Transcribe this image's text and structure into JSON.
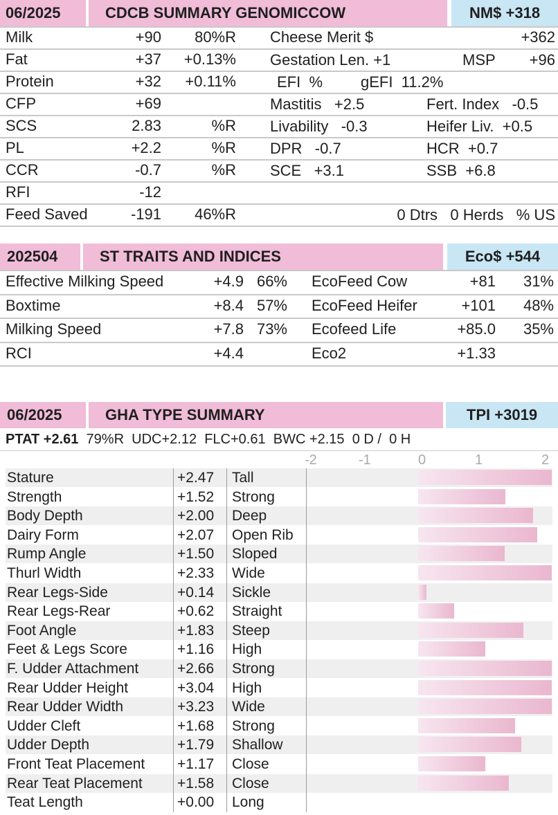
{
  "summary": {
    "date": "06/2025",
    "title": "CDCB SUMMARY GENOMICCOW",
    "index": "NM$ +318",
    "left_rows": [
      {
        "label": "Milk",
        "value": "+90",
        "extra": "80%R"
      },
      {
        "label": "Fat",
        "value": "+37",
        "extra": "+0.13%"
      },
      {
        "label": "Protein",
        "value": "+32",
        "extra": "+0.11%"
      },
      {
        "label": "CFP",
        "value": "+69",
        "extra": ""
      },
      {
        "label": "SCS",
        "value": "2.83",
        "extra": "%R"
      },
      {
        "label": "PL",
        "value": "+2.2",
        "extra": "%R"
      },
      {
        "label": "CCR",
        "value": "-0.7",
        "extra": "%R"
      },
      {
        "label": "RFI",
        "value": "-12",
        "extra": ""
      },
      {
        "label": "Feed Saved",
        "value": "-191",
        "extra": "46%R"
      }
    ],
    "cheese_merit_label": "Cheese Merit $",
    "cheese_merit_value": "+362",
    "gestation": "Gestation Len. +1",
    "msp_label": "MSP",
    "msp_value": "+96",
    "efi": "EFI  %",
    "gefi": "gEFI  11.2%",
    "mastitis": "Mastitis   +2.5",
    "fert_index": "Fert. Index   -0.5",
    "livability": "Livability   -0.3",
    "heifer_liv": "Heifer Liv.  +0.5",
    "dpr": "DPR   -0.7",
    "hcr": "HCR  +0.7",
    "sce": "SCE   +3.1",
    "ssb": "SSB  +6.8",
    "dtrs_herds": "0 Dtrs   0 Herds   % US"
  },
  "st": {
    "date": "202504",
    "title": "ST TRAITS AND INDICES",
    "index": "Eco$ +544",
    "left_rows": [
      {
        "label": "Effective Milking Speed",
        "value": "+4.9",
        "pct": "66%"
      },
      {
        "label": "Boxtime",
        "value": "+8.4",
        "pct": "57%"
      },
      {
        "label": "Milking Speed",
        "value": "+7.8",
        "pct": "73%"
      },
      {
        "label": "RCI",
        "value": "+4.4",
        "pct": ""
      }
    ],
    "right_rows": [
      {
        "label": "EcoFeed Cow",
        "value": "+81",
        "pct": "31%"
      },
      {
        "label": "EcoFeed Heifer",
        "value": "+101",
        "pct": "48%"
      },
      {
        "label": "Ecofeed Life",
        "value": "+85.0",
        "pct": "35%"
      },
      {
        "label": "Eco2",
        "value": "+1.33",
        "pct": ""
      }
    ]
  },
  "type": {
    "date": "06/2025",
    "title": "GHA TYPE SUMMARY",
    "index": "TPI +3019",
    "ptat": "PTAT +2.61",
    "rel": "79%R",
    "udc": "UDC+2.12",
    "flc": "FLC+0.61",
    "bwc": "BWC +2.15",
    "daughters": "0 D /",
    "herds": "0 H",
    "axis_ticks": [
      "-2",
      "-1",
      "0",
      "1",
      "2"
    ],
    "axis_range": [
      -2,
      2
    ],
    "traits": [
      {
        "name": "Stature",
        "value": "+2.47",
        "desc": "Tall",
        "num": 2.47
      },
      {
        "name": "Strength",
        "value": "+1.52",
        "desc": "Strong",
        "num": 1.52
      },
      {
        "name": "Body Depth",
        "value": "+2.00",
        "desc": "Deep",
        "num": 2.0
      },
      {
        "name": "Dairy Form",
        "value": "+2.07",
        "desc": "Open Rib",
        "num": 2.07
      },
      {
        "name": "Rump Angle",
        "value": "+1.50",
        "desc": "Sloped",
        "num": 1.5
      },
      {
        "name": "Thurl Width",
        "value": "+2.33",
        "desc": "Wide",
        "num": 2.33
      },
      {
        "name": "Rear Legs-Side",
        "value": "+0.14",
        "desc": "Sickle",
        "num": 0.14
      },
      {
        "name": "Rear Legs-Rear",
        "value": "+0.62",
        "desc": "Straight",
        "num": 0.62
      },
      {
        "name": "Foot Angle",
        "value": "+1.83",
        "desc": "Steep",
        "num": 1.83
      },
      {
        "name": "Feet & Legs Score",
        "value": "+1.16",
        "desc": "High",
        "num": 1.16
      },
      {
        "name": "F. Udder Attachment",
        "value": "+2.66",
        "desc": "Strong",
        "num": 2.66
      },
      {
        "name": "Rear Udder Height",
        "value": "+3.04",
        "desc": "High",
        "num": 3.04
      },
      {
        "name": "Rear Udder Width",
        "value": "+3.23",
        "desc": "Wide",
        "num": 3.23
      },
      {
        "name": "Udder Cleft",
        "value": "+1.68",
        "desc": "Strong",
        "num": 1.68
      },
      {
        "name": "Udder Depth",
        "value": "+1.79",
        "desc": "Shallow",
        "num": 1.79
      },
      {
        "name": "Front Teat Placement",
        "value": "+1.17",
        "desc": "Close",
        "num": 1.17
      },
      {
        "name": "Rear Teat Placement",
        "value": "+1.58",
        "desc": "Close",
        "num": 1.58
      },
      {
        "name": "Teat Length",
        "value": "+0.00",
        "desc": "Long",
        "num": 0.0
      }
    ]
  }
}
